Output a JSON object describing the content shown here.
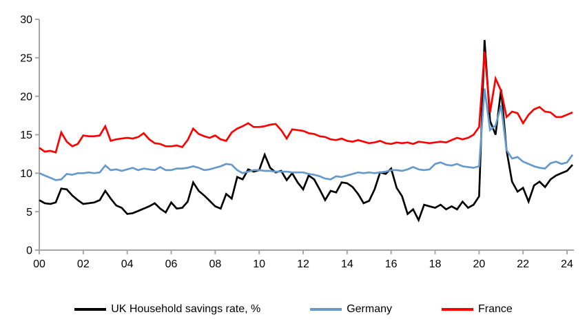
{
  "chart_data": {
    "type": "line",
    "title": "",
    "xlabel": "",
    "ylabel": "",
    "x_range": "2000Q1 to 2024Q2, quarterly",
    "x_tick_labels": [
      "00",
      "02",
      "04",
      "06",
      "08",
      "10",
      "12",
      "14",
      "16",
      "18",
      "20",
      "22",
      "24"
    ],
    "x_ticks_every_n_points": 8,
    "y_ticks": [
      0,
      5,
      10,
      15,
      20,
      25,
      30
    ],
    "ylim": [
      0,
      30
    ],
    "grid": false,
    "legend_position": "bottom",
    "axis_color": "#A6A6A6",
    "label_color": "#000000",
    "series": [
      {
        "id": "uk",
        "name": "UK Household savings rate, %",
        "color": "#000000",
        "values": [
          6.5,
          6.1,
          6.0,
          6.2,
          8.0,
          7.9,
          7.1,
          6.5,
          6.0,
          6.1,
          6.2,
          6.5,
          7.7,
          6.7,
          5.8,
          5.5,
          4.7,
          4.8,
          5.1,
          5.4,
          5.7,
          6.1,
          5.4,
          4.9,
          6.2,
          5.4,
          5.5,
          6.3,
          8.8,
          7.7,
          7.1,
          6.4,
          5.7,
          5.4,
          7.3,
          6.7,
          9.5,
          9.2,
          10.5,
          10.2,
          10.4,
          12.4,
          10.7,
          10.1,
          10.3,
          9.1,
          10.0,
          8.8,
          7.9,
          9.7,
          9.2,
          7.9,
          6.5,
          7.7,
          7.5,
          8.8,
          8.7,
          8.2,
          7.3,
          6.1,
          6.4,
          7.9,
          10.1,
          9.9,
          10.6,
          8.1,
          7.0,
          4.7,
          5.3,
          3.9,
          5.9,
          5.7,
          5.5,
          5.9,
          5.3,
          5.7,
          5.3,
          6.3,
          5.5,
          5.9,
          7.0,
          27.3,
          16.8,
          15.0,
          20.9,
          13.0,
          8.9,
          7.6,
          8.1,
          6.3,
          8.4,
          8.9,
          8.2,
          9.2,
          9.7,
          10.0,
          10.3,
          11.1
        ]
      },
      {
        "id": "germany",
        "name": "Germany",
        "color": "#6699CC",
        "values": [
          10.0,
          9.7,
          9.4,
          9.1,
          9.2,
          9.9,
          9.8,
          10.0,
          10.0,
          10.1,
          10.0,
          10.1,
          11.0,
          10.4,
          10.5,
          10.3,
          10.5,
          10.7,
          10.4,
          10.6,
          10.5,
          10.4,
          10.8,
          10.4,
          10.4,
          10.6,
          10.6,
          10.7,
          10.9,
          10.7,
          10.4,
          10.5,
          10.7,
          10.9,
          11.2,
          11.1,
          10.4,
          10.0,
          10.2,
          10.4,
          10.4,
          10.3,
          10.3,
          10.2,
          10.2,
          10.2,
          10.1,
          10.1,
          10.1,
          9.9,
          9.8,
          9.6,
          9.3,
          9.2,
          9.6,
          9.5,
          9.7,
          9.9,
          10.1,
          10.0,
          10.1,
          10.0,
          10.1,
          10.2,
          10.4,
          10.4,
          10.3,
          10.5,
          10.8,
          10.5,
          10.4,
          10.5,
          11.2,
          11.4,
          11.1,
          11.0,
          11.2,
          10.9,
          10.8,
          10.7,
          10.9,
          21.0,
          15.6,
          16.2,
          18.8,
          13.0,
          11.9,
          12.1,
          11.5,
          11.2,
          10.9,
          10.7,
          10.6,
          11.3,
          11.5,
          11.2,
          11.4,
          12.4
        ]
      },
      {
        "id": "france",
        "name": "France",
        "color": "#FF0000",
        "values": [
          13.3,
          12.8,
          12.9,
          12.7,
          15.3,
          14.1,
          13.5,
          13.8,
          14.9,
          14.8,
          14.8,
          14.9,
          16.1,
          14.2,
          14.4,
          14.5,
          14.6,
          14.5,
          14.7,
          15.2,
          14.4,
          13.9,
          13.8,
          13.5,
          13.5,
          13.6,
          13.4,
          14.3,
          15.8,
          15.1,
          14.8,
          14.6,
          14.9,
          14.4,
          14.2,
          15.3,
          15.8,
          16.1,
          16.5,
          16.0,
          16.0,
          16.1,
          16.3,
          16.4,
          15.6,
          14.5,
          15.7,
          15.6,
          15.5,
          15.2,
          15.1,
          14.8,
          14.7,
          14.4,
          14.3,
          14.5,
          14.2,
          14.1,
          14.3,
          14.1,
          13.9,
          14.0,
          14.2,
          13.9,
          13.8,
          14.0,
          13.9,
          14.0,
          13.8,
          14.1,
          14.0,
          13.9,
          14.0,
          14.1,
          14.0,
          14.3,
          14.6,
          14.4,
          14.6,
          15.0,
          16.0,
          25.8,
          17.9,
          22.3,
          20.7,
          17.3,
          18.0,
          17.8,
          16.5,
          17.6,
          18.3,
          18.6,
          18.0,
          17.9,
          17.3,
          17.3,
          17.6,
          17.9
        ]
      }
    ]
  }
}
